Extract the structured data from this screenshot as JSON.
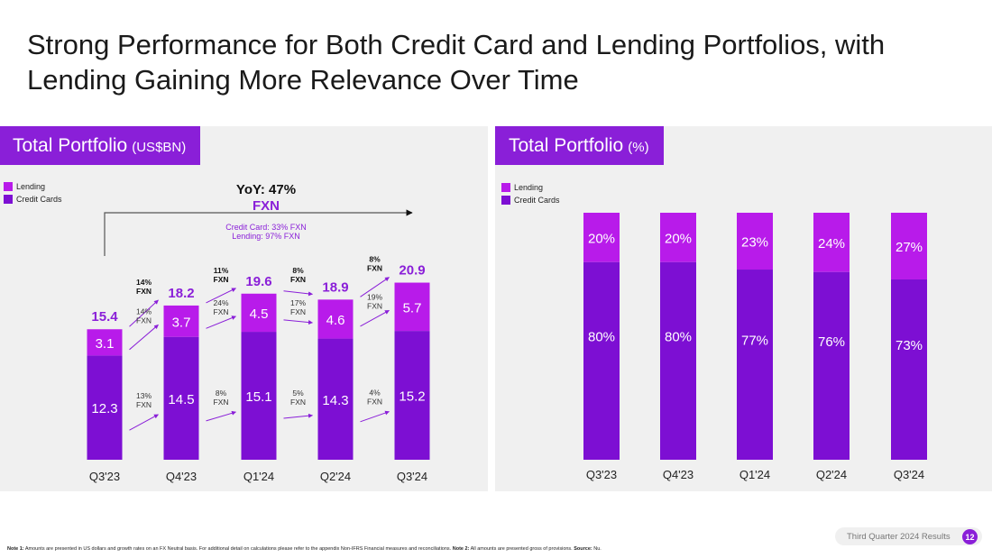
{
  "title": "Strong Performance for Both Credit Card and Lending Portfolios, with Lending Gaining More Relevance Over Time",
  "colors": {
    "lending": "#b81bea",
    "credit_cards": "#7d0fd3",
    "accent": "#8a1fd8",
    "label_purple": "#8a1fd8"
  },
  "left_panel": {
    "title": "Total Portfolio",
    "unit": "(US$BN)",
    "legend": [
      "Lending",
      "Credit Cards"
    ],
    "yoy_title": "YoY: 47%",
    "yoy_fxn": "FXN",
    "yoy_sub_1": "Credit Card: 33% FXN",
    "yoy_sub_2": "Lending: 97% FXN"
  },
  "right_panel": {
    "title": "Total Portfolio",
    "unit": "(%)",
    "legend": [
      "Lending",
      "Credit Cards"
    ]
  },
  "chart_data": [
    {
      "type": "bar",
      "stacked": true,
      "title": "Total Portfolio (US$BN)",
      "categories": [
        "Q3'23",
        "Q4'23",
        "Q1'24",
        "Q2'24",
        "Q3'24"
      ],
      "series": [
        {
          "name": "Credit Cards",
          "values": [
            12.3,
            14.5,
            15.1,
            14.3,
            15.2
          ]
        },
        {
          "name": "Lending",
          "values": [
            3.1,
            3.7,
            4.5,
            4.6,
            5.7
          ]
        }
      ],
      "totals": [
        15.4,
        18.2,
        19.6,
        18.9,
        20.9
      ],
      "growth_total": [
        "14% FXN",
        "11% FXN",
        "8% FXN",
        "8% FXN"
      ],
      "growth_lending": [
        "14% FXN",
        "24% FXN",
        "17% FXN",
        "19% FXN"
      ],
      "growth_credit": [
        "13% FXN",
        "8% FXN",
        "5% FXN",
        "4% FXN"
      ],
      "ylim": [
        0,
        22
      ]
    },
    {
      "type": "bar",
      "stacked": true,
      "title": "Total Portfolio (%)",
      "categories": [
        "Q3'23",
        "Q4'23",
        "Q1'24",
        "Q2'24",
        "Q3'24"
      ],
      "series": [
        {
          "name": "Credit Cards",
          "values": [
            80,
            80,
            77,
            76,
            73
          ],
          "labels": [
            "80%",
            "80%",
            "77%",
            "76%",
            "73%"
          ]
        },
        {
          "name": "Lending",
          "values": [
            20,
            20,
            23,
            24,
            27
          ],
          "labels": [
            "20%",
            "20%",
            "23%",
            "24%",
            "27%"
          ]
        }
      ],
      "ylim": [
        0,
        100
      ]
    }
  ],
  "footer": {
    "note1_label": "Note 1:",
    "note1_text": " Amounts are presented in US dollars and growth rates on an FX Neutral basis. For additional detail on calculations please refer to the appendix Non-IFRS Financial measures and reconciliations. ",
    "note2_label": "Note 2:",
    "note2_text": " All amounts are presented gross of provisions. ",
    "source_label": "Source:",
    "source_text": " Nu.",
    "tag": "Third Quarter 2024 Results",
    "page": "12"
  }
}
